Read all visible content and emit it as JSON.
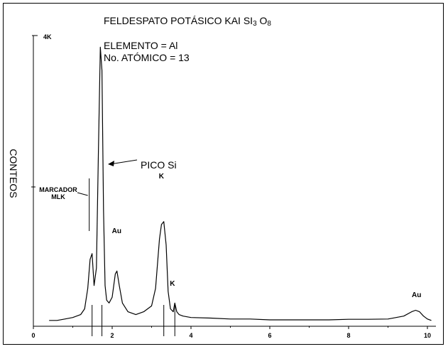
{
  "chart_data": {
    "type": "line",
    "title": "FELDESPATO POTÁSICO KAI",
    "formula": {
      "si": "SI",
      "si_sub": "3",
      "o": "O",
      "o_sub": "8"
    },
    "element_text": "ELEMENTO = Al",
    "atomic_text": "No. ATÓMICO = 13",
    "ylabel": "CONTEOS",
    "y_top_label": "4K",
    "xlim": [
      0,
      10
    ],
    "x_ticks": [
      0,
      2,
      4,
      6,
      8,
      10
    ],
    "x_tick_labels": [
      "0",
      "2",
      "4",
      "6",
      "8",
      "10"
    ],
    "marker_lines": [
      1.49,
      1.74,
      3.31,
      3.59
    ],
    "marker_label": [
      "MARCADOR",
      "MLK"
    ],
    "marker_x": 1.49,
    "pico_label": "PICO Si",
    "peak_labels": [
      {
        "text": "Au",
        "x": 2.12,
        "y": 0.3
      },
      {
        "text": "K",
        "x": 3.31,
        "y": 0.49
      },
      {
        "text": "K",
        "x": 3.59,
        "y": 0.12
      },
      {
        "text": "Au",
        "x": 9.73,
        "y": 0.08
      }
    ],
    "spectrum": {
      "name": "",
      "x": [
        0.4,
        0.6,
        0.8,
        1.0,
        1.2,
        1.3,
        1.38,
        1.44,
        1.49,
        1.54,
        1.6,
        1.65,
        1.7,
        1.74,
        1.78,
        1.82,
        1.86,
        1.92,
        2.0,
        2.08,
        2.12,
        2.18,
        2.26,
        2.4,
        2.6,
        2.8,
        3.0,
        3.1,
        3.2,
        3.25,
        3.31,
        3.37,
        3.42,
        3.48,
        3.55,
        3.59,
        3.64,
        3.7,
        3.8,
        4.0,
        4.5,
        5.0,
        5.5,
        6.0,
        6.5,
        7.0,
        7.5,
        8.0,
        8.5,
        9.0,
        9.4,
        9.6,
        9.7,
        9.8,
        9.9,
        10.0,
        10.1
      ],
      "y": [
        0.02,
        0.02,
        0.025,
        0.03,
        0.04,
        0.06,
        0.13,
        0.23,
        0.25,
        0.14,
        0.2,
        0.6,
        0.96,
        0.88,
        0.4,
        0.14,
        0.09,
        0.08,
        0.1,
        0.18,
        0.19,
        0.14,
        0.08,
        0.05,
        0.04,
        0.05,
        0.07,
        0.13,
        0.3,
        0.35,
        0.36,
        0.28,
        0.12,
        0.06,
        0.05,
        0.08,
        0.05,
        0.04,
        0.035,
        0.03,
        0.028,
        0.025,
        0.025,
        0.022,
        0.022,
        0.022,
        0.022,
        0.024,
        0.024,
        0.025,
        0.035,
        0.05,
        0.055,
        0.05,
        0.035,
        0.025,
        0.02
      ]
    }
  }
}
